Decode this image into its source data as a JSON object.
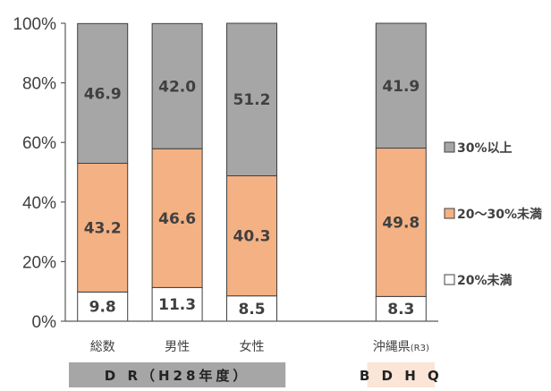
{
  "chart_data": {
    "type": "bar",
    "stacked": true,
    "ylim": [
      0,
      100
    ],
    "y_ticks": [
      "0%",
      "20%",
      "40%",
      "60%",
      "80%",
      "100%"
    ],
    "grid": false,
    "legend_position": "right",
    "categories": [
      {
        "label": "総数",
        "sub": ""
      },
      {
        "label": "男性",
        "sub": ""
      },
      {
        "label": "女性",
        "sub": ""
      },
      {
        "label": "",
        "sub": ""
      },
      {
        "label": "沖縄県",
        "sub": "(R3)"
      }
    ],
    "series": [
      {
        "name": "20%未満",
        "color": "#ffffff",
        "values": [
          9.8,
          11.3,
          8.5,
          null,
          8.3
        ]
      },
      {
        "name": "20～30%未満",
        "color": "#f4b183",
        "values": [
          43.2,
          46.6,
          40.3,
          null,
          49.8
        ]
      },
      {
        "name": "30%以上",
        "color": "#a6a6a6",
        "values": [
          46.9,
          42.0,
          51.2,
          null,
          41.9
        ]
      }
    ],
    "legend": [
      "30%以上",
      "20～30%未満",
      "20%未満"
    ],
    "groups": [
      {
        "label": "D R（H28年度）",
        "color": "#a6a6a6",
        "from": 0,
        "to": 2
      },
      {
        "label": "B D H Q",
        "color": "#fbe5d6",
        "from": 4,
        "to": 4
      }
    ]
  }
}
